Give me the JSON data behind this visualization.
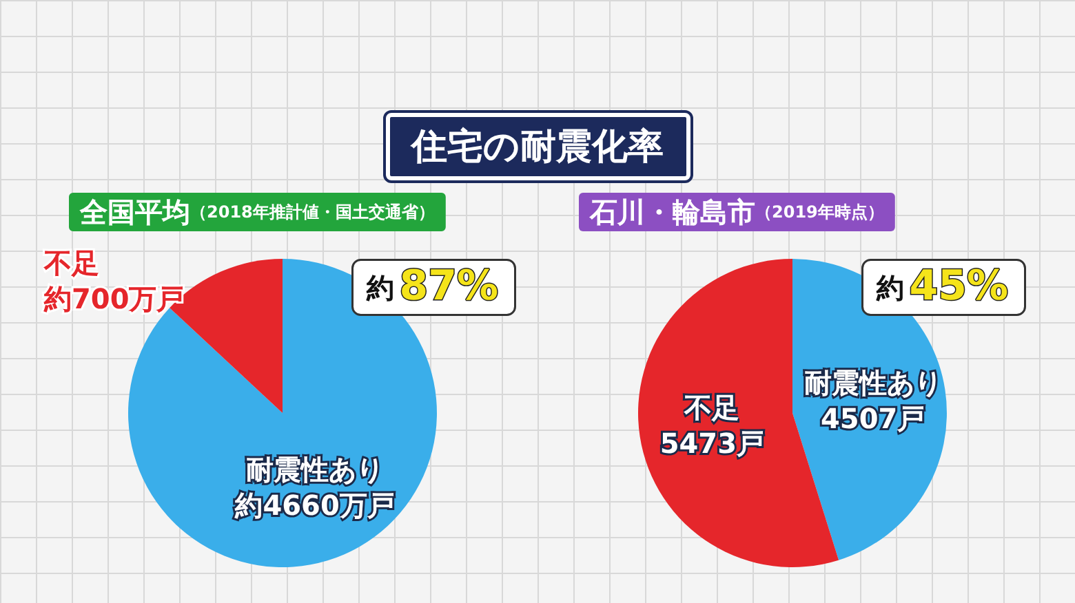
{
  "chart_data": [
    {
      "type": "pie",
      "title": "住宅の耐震化率",
      "subtitle": "全国平均",
      "annotations": [
        "（2018年推計値・国土交通省）",
        "約87%"
      ],
      "categories": [
        "耐震性あり",
        "不足"
      ],
      "values": [
        4660,
        700
      ],
      "value_labels": [
        "約4660万戸",
        "約700万戸"
      ],
      "colors": [
        "#3aaeea",
        "#e5262b"
      ],
      "legend": false
    },
    {
      "type": "pie",
      "subtitle": "石川・輪島市",
      "annotations": [
        "（2019年時点）",
        "約45%"
      ],
      "categories": [
        "耐震性あり",
        "不足"
      ],
      "values": [
        4507,
        5473
      ],
      "value_labels": [
        "4507戸",
        "5473戸"
      ],
      "colors": [
        "#3aaeea",
        "#e5262b"
      ],
      "legend": false
    }
  ]
}
